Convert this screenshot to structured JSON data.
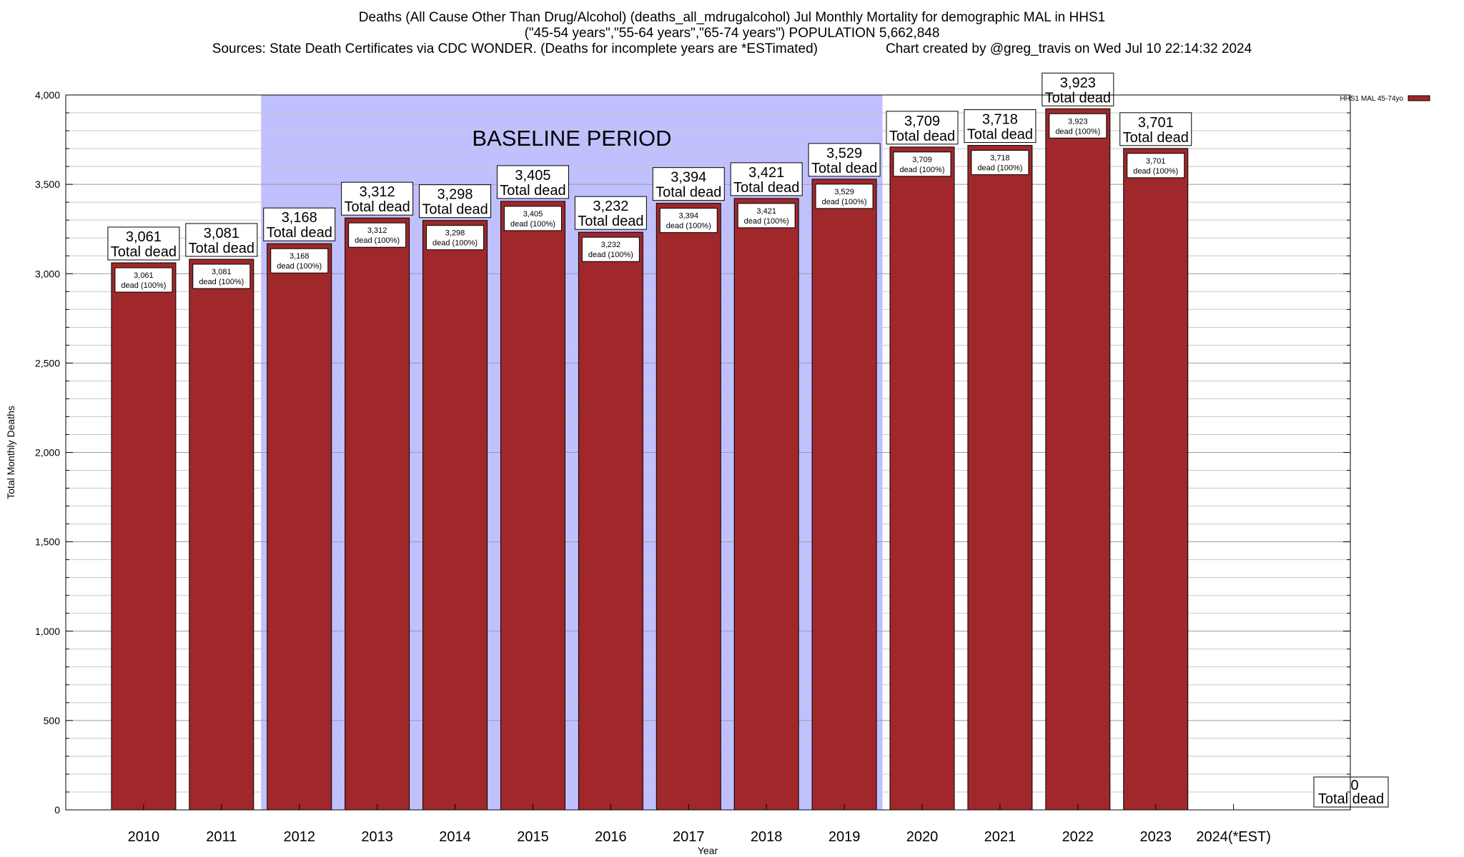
{
  "header": {
    "title_line1": "Deaths (All Cause Other Than Drug/Alcohol) (deaths_all_mdrugalcohol) Jul Monthly Mortality for demographic MAL in HHS1",
    "title_line2": "(\"45-54 years\",\"55-64 years\",\"65-74 years\") POPULATION 5,662,848",
    "sources": "Sources: State Death Certificates via CDC WONDER. (Deaths for incomplete years are *ESTimated)",
    "credit": "Chart created by @greg_travis on Wed Jul 10 22:14:32 2024"
  },
  "chart_data": {
    "type": "bar",
    "xlabel": "Year",
    "ylabel": "Total Monthly Deaths",
    "ylim": [
      0,
      4000
    ],
    "yticks": [
      0,
      500,
      1000,
      1500,
      2000,
      2500,
      3000,
      3500,
      4000
    ],
    "ytick_labels": [
      "0",
      "500",
      "1,000",
      "1,500",
      "2,000",
      "2,500",
      "3,000",
      "3,500",
      "4,000"
    ],
    "minor_tick_step": 100,
    "grid": true,
    "legend_position": "top-right",
    "categories": [
      "2010",
      "2011",
      "2012",
      "2013",
      "2014",
      "2015",
      "2016",
      "2017",
      "2018",
      "2019",
      "2020",
      "2021",
      "2022",
      "2023",
      "2024(*EST)"
    ],
    "series": [
      {
        "name": "HHS1 MAL 45-74yo",
        "color": "#a0282a",
        "values": [
          3061,
          3081,
          3168,
          3312,
          3298,
          3405,
          3232,
          3394,
          3421,
          3529,
          3709,
          3718,
          3923,
          3701,
          0
        ]
      }
    ],
    "value_labels": [
      "3,061",
      "3,081",
      "3,168",
      "3,312",
      "3,298",
      "3,405",
      "3,232",
      "3,394",
      "3,421",
      "3,529",
      "3,709",
      "3,718",
      "3,923",
      "3,701",
      "0"
    ],
    "total_label": "Total dead",
    "inner_label_suffix": "dead (100%)",
    "annotations": [
      {
        "text": "BASELINE PERIOD",
        "from": "2012",
        "to": "2019",
        "color": "#c0c0ff"
      }
    ]
  }
}
